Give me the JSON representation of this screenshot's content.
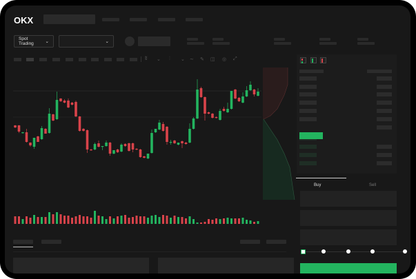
{
  "header": {
    "logo": "OKX"
  },
  "toolbar": {
    "market_select": "Spot Trading",
    "chevron": "⌄"
  },
  "order_form": {
    "tabs": [
      {
        "label": "Buy",
        "active": true
      },
      {
        "label": "Sell",
        "active": false
      }
    ],
    "slider_percent": 0
  },
  "colors": {
    "up": "#23b45f",
    "down": "#d8434a",
    "background": "#181818"
  },
  "chart_data": {
    "type": "candlestick",
    "candles": [
      [
        118,
        118.5,
        114,
        115
      ],
      [
        118,
        118.5,
        107,
        109
      ],
      [
        107,
        108.5,
        106,
        108
      ],
      [
        108,
        113,
        93,
        94
      ],
      [
        93,
        93.5,
        87,
        89
      ],
      [
        87,
        100,
        84,
        100
      ],
      [
        102,
        103,
        94,
        94
      ],
      [
        98,
        117,
        97,
        114
      ],
      [
        113,
        114,
        106,
        106
      ],
      [
        107,
        143,
        106,
        135
      ],
      [
        134,
        135,
        124,
        125
      ],
      [
        127,
        167,
        126,
        155
      ],
      [
        157,
        157.5,
        152,
        153
      ],
      [
        154,
        156,
        150,
        151
      ],
      [
        154,
        157,
        143,
        144
      ],
      [
        151,
        152,
        147,
        148
      ],
      [
        152,
        154,
        130,
        131
      ],
      [
        131,
        131.5,
        109,
        110
      ],
      [
        113,
        114,
        109,
        110
      ],
      [
        111,
        112,
        78,
        83
      ],
      [
        83,
        84,
        81,
        82
      ],
      [
        83,
        93,
        82,
        91
      ],
      [
        92,
        96,
        86,
        87
      ],
      [
        87,
        88,
        82,
        88
      ],
      [
        88,
        96,
        87,
        93
      ],
      [
        93,
        94,
        74,
        77
      ],
      [
        77,
        82,
        76,
        82
      ],
      [
        83,
        84,
        78,
        79
      ],
      [
        80,
        92,
        79,
        90
      ],
      [
        91,
        92,
        87,
        88
      ],
      [
        92,
        93,
        80,
        81
      ],
      [
        92,
        93,
        79,
        83
      ],
      [
        84,
        85,
        82,
        83
      ],
      [
        83,
        84,
        71,
        72
      ],
      [
        73,
        74,
        70,
        71
      ],
      [
        70,
        77,
        69,
        77
      ],
      [
        78,
        112,
        77,
        107
      ],
      [
        108,
        113,
        107,
        113
      ],
      [
        112,
        126,
        111,
        122
      ],
      [
        120,
        123,
        109,
        110
      ],
      [
        116,
        117,
        90,
        94
      ],
      [
        93,
        97,
        90,
        94
      ],
      [
        96,
        97,
        91,
        92
      ],
      [
        90,
        93,
        89,
        93
      ],
      [
        95,
        96,
        85,
        92
      ],
      [
        93,
        94,
        90,
        91
      ],
      [
        93,
        121,
        92,
        113
      ],
      [
        113,
        130,
        112,
        128
      ],
      [
        128,
        185,
        127,
        170
      ],
      [
        172,
        174,
        158,
        159
      ],
      [
        159,
        160,
        125,
        135
      ],
      [
        137,
        138,
        134,
        135
      ],
      [
        135,
        136,
        128,
        129
      ],
      [
        130,
        131,
        128,
        129
      ],
      [
        126,
        142,
        125,
        139
      ],
      [
        142,
        145,
        138,
        139
      ],
      [
        137,
        151,
        136,
        142
      ],
      [
        142,
        168,
        141,
        168
      ],
      [
        170,
        171,
        156,
        157
      ],
      [
        158,
        159,
        152,
        153
      ],
      [
        151,
        166,
        150,
        160
      ],
      [
        160,
        175,
        159,
        169
      ],
      [
        169,
        182,
        168,
        177
      ],
      [
        170,
        171,
        160,
        163
      ],
      [
        161,
        172,
        160,
        167
      ]
    ],
    "volume": [
      11,
      11,
      7,
      11,
      9,
      13,
      10,
      10,
      10,
      17,
      14,
      17,
      14,
      12,
      12,
      9,
      11,
      13,
      11,
      11,
      9,
      19,
      12,
      11,
      7,
      11,
      8,
      11,
      12,
      13,
      9,
      10,
      12,
      11,
      11,
      9,
      12,
      13,
      10,
      13,
      12,
      9,
      12,
      10,
      10,
      8,
      11,
      7,
      2,
      2,
      3,
      7,
      6,
      8,
      7,
      8,
      9,
      8,
      8,
      8,
      9,
      6,
      5,
      3,
      4
    ]
  }
}
